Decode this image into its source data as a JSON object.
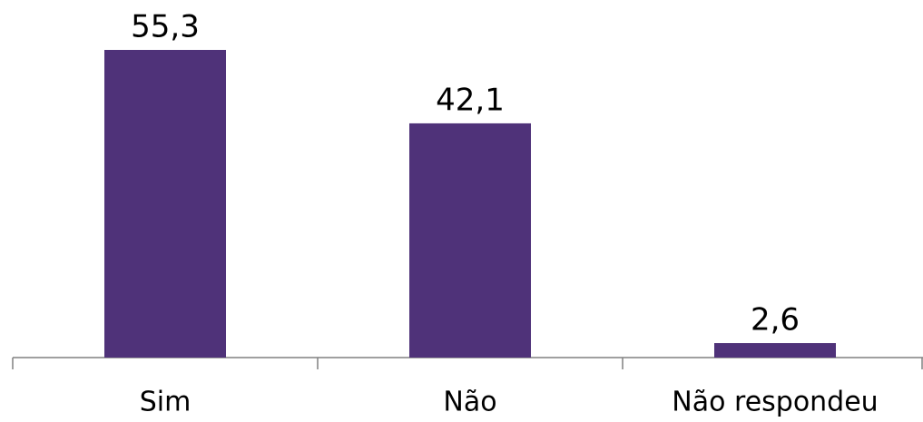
{
  "chart_data": {
    "type": "bar",
    "categories": [
      "Sim",
      "Não",
      "Não respondeu"
    ],
    "values": [
      55.3,
      42.1,
      2.6
    ],
    "value_labels": [
      "55,3",
      "42,1",
      "2,6"
    ],
    "color": "#4f3279"
  }
}
